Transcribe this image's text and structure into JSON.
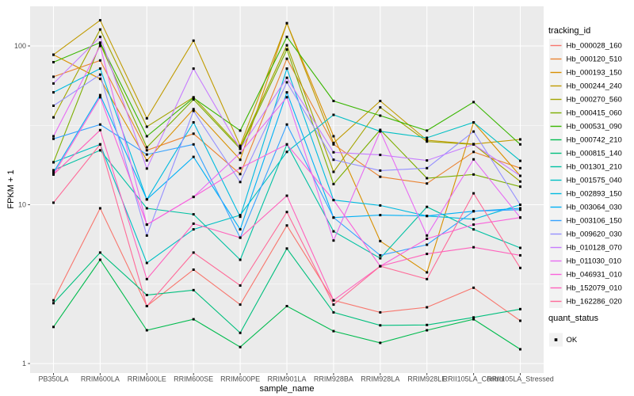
{
  "chart_data": {
    "type": "line",
    "xlabel": "sample_name",
    "ylabel": "FPKM + 1",
    "y_scale": "log10",
    "y_ticks": [
      1,
      10,
      100
    ],
    "y_tick_labels": [
      "1",
      "10",
      "100"
    ],
    "y_minor_gridlines": [
      3.1623,
      31.6228
    ],
    "grid": true,
    "legend_position": "right",
    "panel_bg": "#EBEBEB",
    "grid_color": "#FFFFFF",
    "legend_key_bg": "#F2F2F2",
    "point_color": "#000000",
    "point_shape": "square",
    "axis_text_color": "#4D4D4D",
    "axis_tick_color": "#333333",
    "categories": [
      "PB350LA",
      "RRIM600LA",
      "RRIM600LE",
      "RRIM600SE",
      "RRIM600PE",
      "RRIM901LA",
      "RRIM928BA",
      "RRIM928LA",
      "RRIM928LE",
      "RRII105LA_Control",
      "RRII105LA_Stressed"
    ],
    "color_legend_title": "tracking_id",
    "shape_legend_title": "quant_status",
    "shape_legend_entries": [
      {
        "label": "OK",
        "marker": "black-square"
      }
    ],
    "series": [
      {
        "name": "Hb_000028_160",
        "color": "#F8766D",
        "values": [
          2.5,
          9.5,
          2.3,
          3.9,
          2.35,
          7.4,
          2.5,
          2.1,
          2.26,
          3.0,
          1.86
        ]
      },
      {
        "name": "Hb_000120_510",
        "color": "#EA8331",
        "values": [
          64,
          81,
          22,
          28,
          15.6,
          83,
          24,
          15,
          13.6,
          21.5,
          17
        ]
      },
      {
        "name": "Hb_000193_150",
        "color": "#D89000",
        "values": [
          88,
          62,
          19,
          40,
          19.2,
          139,
          27,
          5.9,
          3.75,
          33,
          15.2
        ]
      },
      {
        "name": "Hb_000244_240",
        "color": "#C09B00",
        "values": [
          88,
          145,
          35,
          108,
          23.5,
          139,
          24.5,
          45,
          25.5,
          24.1,
          25.8
        ]
      },
      {
        "name": "Hb_000270_560",
        "color": "#A3A500",
        "values": [
          35.5,
          127,
          31,
          47.5,
          23,
          101,
          16.1,
          41,
          25,
          24,
          14
        ]
      },
      {
        "name": "Hb_000415_060",
        "color": "#7CAE00",
        "values": [
          18.5,
          103,
          23,
          46,
          22.5,
          95,
          13.5,
          29.6,
          14.7,
          15.5,
          13
        ]
      },
      {
        "name": "Hb_000531_090",
        "color": "#39B600",
        "values": [
          79,
          105,
          27,
          47,
          29.3,
          114,
          45,
          36.4,
          29.3,
          44.3,
          24
        ]
      },
      {
        "name": "Hb_000742_210",
        "color": "#00BB4E",
        "values": [
          1.7,
          4.5,
          1.62,
          1.9,
          1.27,
          2.3,
          1.6,
          1.35,
          1.62,
          1.9,
          1.23
        ]
      },
      {
        "name": "Hb_000815_140",
        "color": "#00BF7D",
        "values": [
          2.4,
          5.0,
          2.7,
          2.9,
          1.56,
          5.3,
          2.1,
          1.74,
          1.75,
          1.95,
          2.2
        ]
      },
      {
        "name": "Hb_001301_210",
        "color": "#00C1A3",
        "values": [
          16.5,
          22,
          9.5,
          8.7,
          4.5,
          24,
          6.8,
          4.6,
          9.7,
          7.0,
          5.35
        ]
      },
      {
        "name": "Hb_001575_040",
        "color": "#00BFC4",
        "values": [
          18.5,
          24,
          4.3,
          7.0,
          8.6,
          21.5,
          36.8,
          29,
          26.4,
          33,
          18.9
        ]
      },
      {
        "name": "Hb_002893_150",
        "color": "#00BAE0",
        "values": [
          51,
          72,
          10.8,
          33,
          8.4,
          72,
          10.7,
          9.9,
          8.5,
          8.1,
          10
        ]
      },
      {
        "name": "Hb_003064_030",
        "color": "#00B0F6",
        "values": [
          16,
          49,
          10.8,
          20,
          7.0,
          51,
          8.3,
          8.6,
          8.5,
          9.1,
          9.5
        ]
      },
      {
        "name": "Hb_003106_150",
        "color": "#35A2FF",
        "values": [
          26,
          32,
          20.7,
          24,
          6.2,
          32,
          8.3,
          4.8,
          5.6,
          9.1,
          9.3
        ]
      },
      {
        "name": "Hb_009620_030",
        "color": "#9590FF",
        "values": [
          42,
          66,
          6.4,
          39,
          13.9,
          59,
          19.2,
          16.4,
          17,
          28.9,
          10
        ]
      },
      {
        "name": "Hb_010128_070",
        "color": "#C77CFF",
        "values": [
          58,
          114,
          16.9,
          72,
          22.5,
          63,
          21.4,
          20.6,
          19,
          24,
          15.2
        ]
      },
      {
        "name": "Hb_011030_010",
        "color": "#E76BF3",
        "values": [
          27,
          100,
          7.5,
          11.2,
          21.2,
          47.5,
          5.95,
          29,
          6.4,
          19.3,
          8.3
        ]
      },
      {
        "name": "Hb_046931_010",
        "color": "#FA62DB",
        "values": [
          15.5,
          47.5,
          7.5,
          11.2,
          17,
          24,
          10.7,
          4.1,
          6.1,
          7.5,
          8.3
        ]
      },
      {
        "name": "Hb_152079_010",
        "color": "#FF62BC",
        "values": [
          15.5,
          29.5,
          3.4,
          7.6,
          6.2,
          11.4,
          2.5,
          4.1,
          4.9,
          5.4,
          4.8
        ]
      },
      {
        "name": "Hb_162286_020",
        "color": "#FF6A98",
        "values": [
          10.3,
          24,
          2.3,
          5.0,
          3.1,
          9.0,
          2.35,
          4.1,
          3.4,
          11.8,
          4.0
        ]
      }
    ]
  }
}
